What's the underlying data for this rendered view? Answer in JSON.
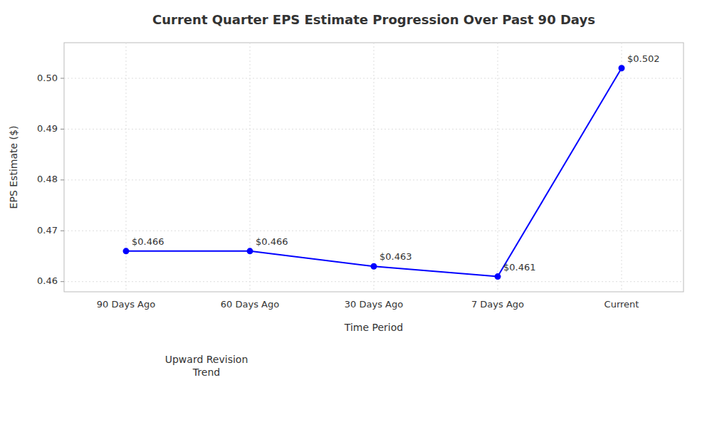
{
  "chart_data": {
    "type": "line",
    "title": "Current Quarter EPS Estimate Progression Over Past 90 Days",
    "xlabel": "Time Period",
    "ylabel": "EPS Estimate ($)",
    "categories": [
      "90 Days Ago",
      "60 Days Ago",
      "30 Days Ago",
      "7 Days Ago",
      "Current"
    ],
    "values": [
      0.466,
      0.466,
      0.463,
      0.461,
      0.502
    ],
    "value_labels": [
      "$0.466",
      "$0.466",
      "$0.463",
      "$0.461",
      "$0.502"
    ],
    "data_labels": true,
    "color": "#0000ff",
    "marker": "circle",
    "ylim": [
      0.458,
      0.507
    ],
    "yticks": [
      0.46,
      0.47,
      0.48,
      0.49,
      {
        "value": 0.5,
        "label": "0.50"
      }
    ],
    "grid": true,
    "annotation": "Upward Revision\nTrend"
  }
}
